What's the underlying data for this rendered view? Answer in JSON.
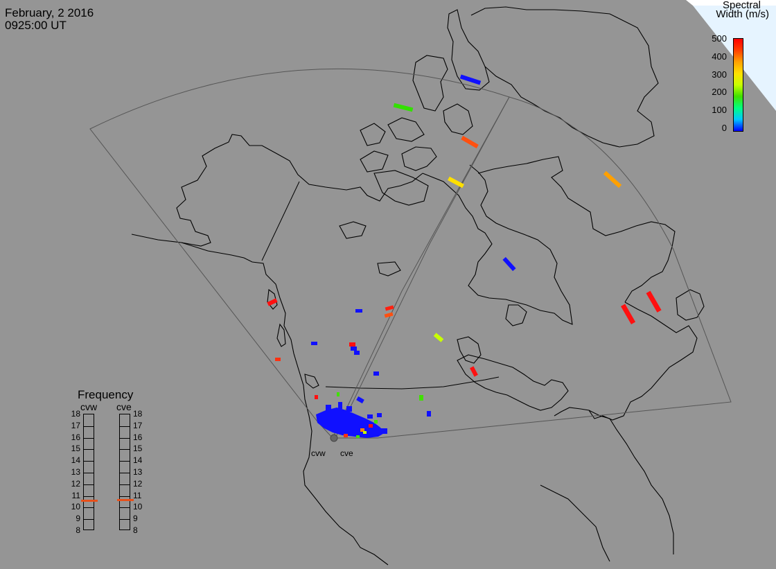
{
  "header": {
    "date": "February, 2 2016",
    "time": "0925:00 UT"
  },
  "colorbar": {
    "title_line1": "Spectral",
    "title_line2": "Width (m/s)",
    "ticks": [
      "500",
      "400",
      "300",
      "200",
      "100",
      "0"
    ],
    "colors": [
      "#0000ff",
      "#00c8ff",
      "#00ff80",
      "#40e000",
      "#c8ff00",
      "#ffe000",
      "#ffa000",
      "#ff4000",
      "#ff0000"
    ]
  },
  "radars": {
    "left": "cvw",
    "right": "cve"
  },
  "frequency": {
    "title": "Frequency",
    "radar1": "cvw",
    "radar2": "cve",
    "ticks": [
      "18",
      "17",
      "16",
      "15",
      "14",
      "13",
      "12",
      "11",
      "10",
      "9",
      "8"
    ],
    "cvw_mhz": 10.6,
    "cve_mhz": 10.7,
    "marker_color": "#e8501a"
  },
  "map": {
    "background": "#959595",
    "coast_color": "#000000",
    "fov_color": "#555555",
    "corner_fill": "#e6f4ff"
  }
}
